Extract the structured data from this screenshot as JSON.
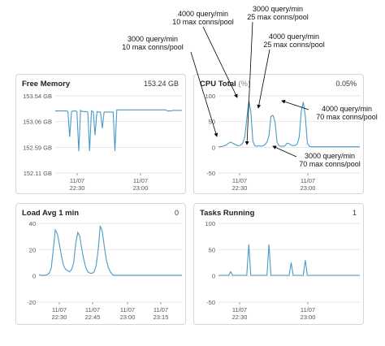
{
  "colors": {
    "line": "#4a9ac9",
    "grid": "#e4e4e4",
    "axis_text": "#555555",
    "border": "#d6d6d6"
  },
  "panels": {
    "free_memory": {
      "title": "Free Memory",
      "value": "153.24 GB",
      "y_ticks": [
        "153.54 GB",
        "153.06 GB",
        "152.59 GB",
        "152.11 GB"
      ],
      "x_ticks": [
        {
          "date": "11/07",
          "time": "22:30"
        },
        {
          "date": "11/07",
          "time": "23:00"
        }
      ]
    },
    "cpu_total": {
      "title": "CPU Total",
      "unit": "(%)",
      "value": "0.05%",
      "y_ticks": [
        "100",
        "50",
        "0",
        "-50"
      ],
      "x_ticks": [
        {
          "date": "11/07",
          "time": "22:30"
        },
        {
          "date": "11/07",
          "time": "23:00"
        }
      ]
    },
    "load_avg": {
      "title": "Load Avg 1 min",
      "value": "0",
      "y_ticks": [
        "40",
        "20",
        "0",
        "-20"
      ],
      "x_ticks": [
        {
          "date": "11/07",
          "time": "22:30"
        },
        {
          "date": "11/07",
          "time": "22:45"
        },
        {
          "date": "11/07",
          "time": "23:00"
        },
        {
          "date": "11/07",
          "time": "23:15"
        }
      ]
    },
    "tasks_running": {
      "title": "Tasks Running",
      "value": "1",
      "y_ticks": [
        "100",
        "50",
        "0",
        "-50"
      ],
      "x_ticks": [
        {
          "date": "11/07",
          "time": "22:30"
        },
        {
          "date": "11/07",
          "time": "23:00"
        }
      ]
    }
  },
  "annotations": [
    {
      "line1": "4000 query/min",
      "line2": "10 max conns/pool"
    },
    {
      "line1": "3000 query/min",
      "line2": "25 max conns/pool"
    },
    {
      "line1": "4000 query/min",
      "line2": "25 max conns/pool"
    },
    {
      "line1": "3000 query/min",
      "line2": "10 max conns/pool"
    },
    {
      "line1": "4000 query/min",
      "line2": "70 max conns/pool"
    },
    {
      "line1": "3000 query/min",
      "line2": "70 max conns/pool"
    }
  ],
  "chart_data": [
    {
      "type": "line",
      "title": "Free Memory",
      "ylim": [
        152.11,
        153.54
      ],
      "x": [
        0,
        1,
        2,
        3,
        4,
        5,
        6,
        7,
        8,
        9,
        10,
        11,
        12,
        13,
        14,
        15,
        16,
        17,
        18,
        19,
        20,
        21,
        22,
        23,
        24,
        25,
        26,
        27,
        28,
        29,
        30,
        31,
        32,
        33,
        34,
        35,
        36,
        37,
        38,
        39,
        40,
        41,
        42,
        43,
        44,
        45,
        46,
        47,
        48,
        49,
        50,
        51,
        52,
        53,
        54,
        55,
        56,
        57,
        58,
        59,
        60,
        61,
        62,
        63,
        64,
        65,
        66,
        67,
        68,
        69,
        70
      ],
      "series": [
        {
          "values": [
            153.26,
            153.26,
            153.26,
            153.26,
            153.26,
            153.26,
            153.26,
            153.25,
            152.78,
            153.25,
            153.26,
            153.26,
            153.25,
            152.51,
            153.27,
            153.25,
            153.25,
            153.25,
            153.24,
            152.52,
            153.26,
            153.25,
            152.81,
            153.25,
            153.24,
            153.24,
            152.94,
            153.24,
            153.24,
            153.24,
            153.24,
            153.24,
            153.24,
            152.52,
            153.28,
            153.28,
            153.28,
            153.28,
            153.28,
            153.28,
            153.28,
            153.28,
            153.28,
            153.28,
            153.28,
            153.28,
            153.28,
            153.28,
            153.28,
            153.28,
            153.28,
            153.28,
            153.28,
            153.28,
            153.28,
            153.28,
            153.28,
            153.28,
            153.28,
            153.28,
            153.28,
            153.28,
            153.26,
            153.26,
            153.26,
            153.27,
            153.27,
            153.27,
            153.27,
            153.27,
            153.27
          ]
        }
      ]
    },
    {
      "type": "line",
      "title": "CPU Total",
      "ylabel": "(%)",
      "ylim": [
        -50,
        100
      ],
      "x": [
        0,
        1,
        2,
        3,
        4,
        5,
        6,
        7,
        8,
        9,
        10,
        11,
        12,
        13,
        14,
        15,
        16,
        17,
        18,
        19,
        20,
        21,
        22,
        23,
        24,
        25,
        26,
        27,
        28,
        29,
        30,
        31,
        32,
        33,
        34,
        35,
        36,
        37,
        38,
        39,
        40,
        41,
        42,
        43,
        44,
        45,
        46,
        47,
        48,
        49,
        50,
        51,
        52,
        53,
        54,
        55,
        56,
        57,
        58,
        59,
        60,
        61,
        62,
        63,
        64,
        65,
        66,
        67,
        68,
        69,
        70
      ],
      "series": [
        {
          "values": [
            1,
            1,
            2,
            3,
            5,
            8,
            10,
            8,
            6,
            4,
            3,
            4,
            8,
            20,
            55,
            90,
            70,
            12,
            3,
            2,
            3,
            2,
            3,
            5,
            10,
            22,
            60,
            62,
            50,
            10,
            3,
            2,
            2,
            3,
            8,
            7,
            4,
            3,
            4,
            6,
            20,
            70,
            88,
            60,
            8,
            2,
            1,
            1,
            1,
            1,
            1,
            1,
            1,
            1,
            1,
            1,
            1,
            1,
            1,
            1,
            1,
            1,
            1,
            1,
            1,
            1,
            1,
            1,
            1,
            1,
            1
          ]
        }
      ]
    },
    {
      "type": "line",
      "title": "Load Avg 1 min",
      "ylim": [
        -20,
        40
      ],
      "x": [
        0,
        1,
        2,
        3,
        4,
        5,
        6,
        7,
        8,
        9,
        10,
        11,
        12,
        13,
        14,
        15,
        16,
        17,
        18,
        19,
        20,
        21,
        22,
        23,
        24,
        25,
        26,
        27,
        28,
        29,
        30,
        31,
        32,
        33,
        34,
        35,
        36,
        37,
        38,
        39,
        40,
        41,
        42,
        43,
        44,
        45,
        46,
        47,
        48,
        49,
        50,
        51,
        52,
        53,
        54,
        55,
        56,
        57,
        58,
        59,
        60,
        61,
        62,
        63,
        64,
        65,
        66,
        67,
        68,
        69,
        70
      ],
      "series": [
        {
          "values": [
            1,
            0.5,
            0.5,
            0.5,
            1,
            2,
            6,
            20,
            35,
            32,
            24,
            15,
            8,
            5,
            4,
            3,
            5,
            10,
            25,
            33,
            30,
            20,
            12,
            6,
            3,
            2,
            2,
            3,
            8,
            20,
            38,
            34,
            22,
            12,
            6,
            3,
            1,
            0.5,
            0.5,
            0.5,
            0.5,
            0.5,
            0.5,
            0.5,
            0.5,
            0.5,
            0.5,
            0.5,
            0.5,
            0.5,
            0.5,
            0.5,
            0.5,
            0.5,
            0.5,
            0.5,
            0.5,
            0.5,
            0.5,
            0.5,
            0.5,
            0.5,
            0.5,
            0.5,
            0.5,
            0.5,
            0.5,
            0.5,
            0.5,
            0.5,
            0.5
          ]
        }
      ]
    },
    {
      "type": "line",
      "title": "Tasks Running",
      "ylim": [
        -50,
        100
      ],
      "x": [
        0,
        1,
        2,
        3,
        4,
        5,
        6,
        7,
        8,
        9,
        10,
        11,
        12,
        13,
        14,
        15,
        16,
        17,
        18,
        19,
        20,
        21,
        22,
        23,
        24,
        25,
        26,
        27,
        28,
        29,
        30,
        31,
        32,
        33,
        34,
        35,
        36,
        37,
        38,
        39,
        40,
        41,
        42,
        43,
        44,
        45,
        46,
        47,
        48,
        49,
        50,
        51,
        52,
        53,
        54,
        55,
        56,
        57,
        58,
        59,
        60,
        61,
        62,
        63,
        64,
        65,
        66,
        67,
        68,
        69,
        70
      ],
      "series": [
        {
          "values": [
            1,
            1,
            1,
            1,
            1,
            1,
            8,
            1,
            1,
            1,
            1,
            1,
            1,
            1,
            1,
            60,
            1,
            1,
            1,
            1,
            1,
            1,
            1,
            1,
            1,
            60,
            1,
            1,
            1,
            1,
            1,
            1,
            1,
            1,
            1,
            1,
            25,
            1,
            1,
            1,
            1,
            1,
            1,
            30,
            1,
            1,
            1,
            1,
            1,
            1,
            1,
            1,
            1,
            1,
            1,
            1,
            1,
            1,
            1,
            1,
            1,
            1,
            1,
            1,
            1,
            1,
            1,
            1,
            1,
            1,
            1
          ],
          "note_hidden": null
        }
      ]
    }
  ]
}
